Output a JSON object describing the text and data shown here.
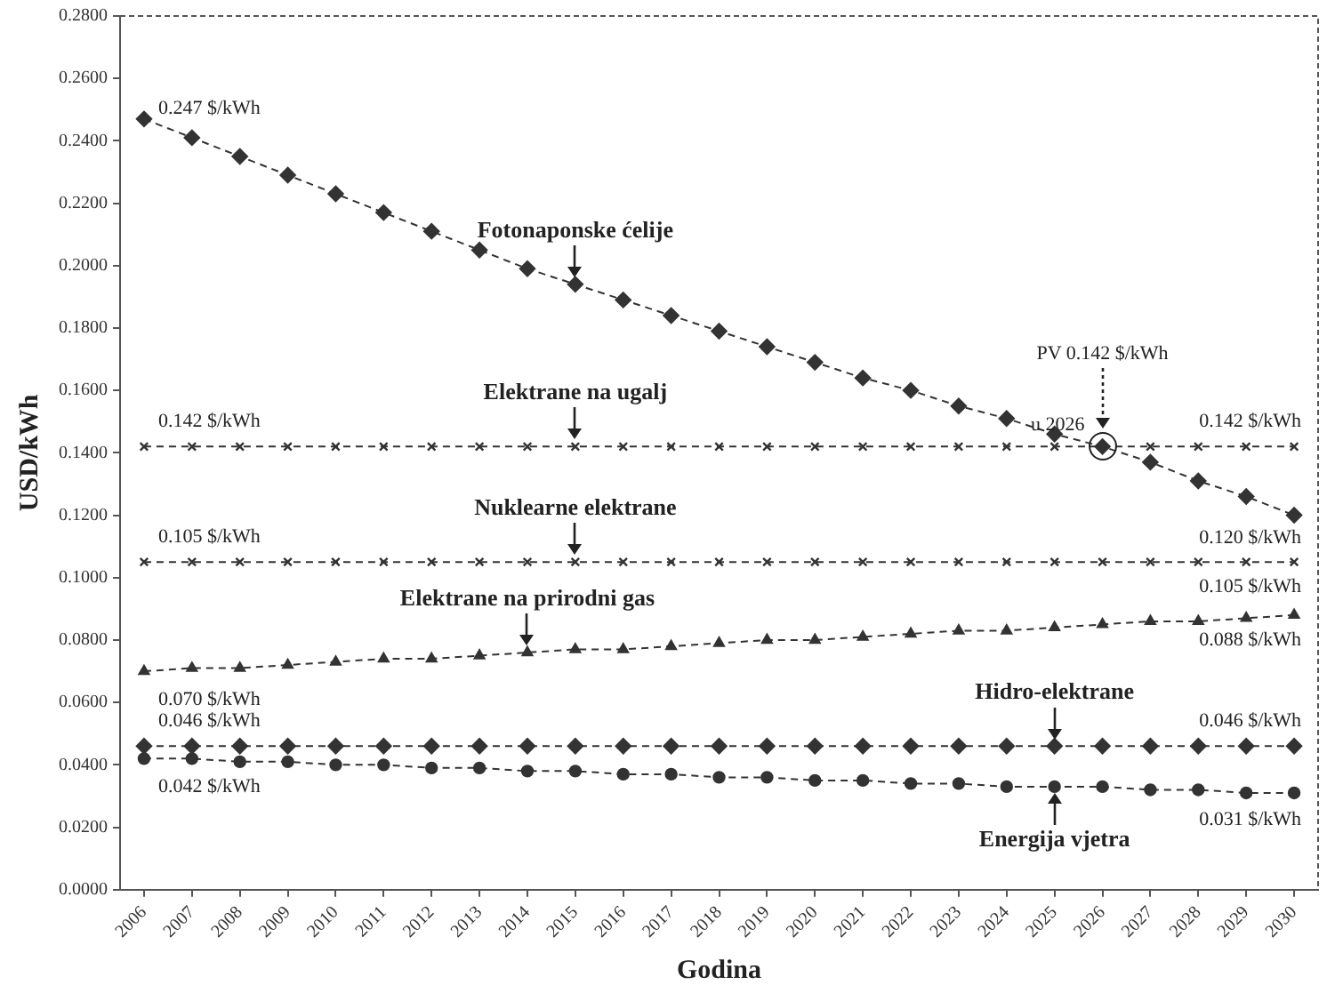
{
  "chart_data": {
    "type": "line",
    "xlabel": "Godina",
    "ylabel": "USD/kWh",
    "categories": [
      "2006",
      "2007",
      "2008",
      "2009",
      "2010",
      "2011",
      "2012",
      "2013",
      "2014",
      "2015",
      "2016",
      "2017",
      "2018",
      "2019",
      "2020",
      "2021",
      "2022",
      "2023",
      "2024",
      "2025",
      "2026",
      "2027",
      "2028",
      "2029",
      "2030"
    ],
    "series": [
      {
        "name": "Fotonaponske ćelije",
        "color": "#333333",
        "marker": "diamond",
        "values": [
          0.247,
          0.241,
          0.235,
          0.229,
          0.223,
          0.217,
          0.211,
          0.205,
          0.199,
          0.194,
          0.189,
          0.184,
          0.179,
          0.174,
          0.169,
          0.164,
          0.16,
          0.155,
          0.151,
          0.146,
          0.142,
          0.137,
          0.131,
          0.126,
          0.12
        ]
      },
      {
        "name": "Elektrane na ugalj",
        "color": "#333333",
        "marker": "cross",
        "values": [
          0.142,
          0.142,
          0.142,
          0.142,
          0.142,
          0.142,
          0.142,
          0.142,
          0.142,
          0.142,
          0.142,
          0.142,
          0.142,
          0.142,
          0.142,
          0.142,
          0.142,
          0.142,
          0.142,
          0.142,
          0.142,
          0.142,
          0.142,
          0.142,
          0.142
        ]
      },
      {
        "name": "Nuklearne elektrane",
        "color": "#333333",
        "marker": "cross",
        "values": [
          0.105,
          0.105,
          0.105,
          0.105,
          0.105,
          0.105,
          0.105,
          0.105,
          0.105,
          0.105,
          0.105,
          0.105,
          0.105,
          0.105,
          0.105,
          0.105,
          0.105,
          0.105,
          0.105,
          0.105,
          0.105,
          0.105,
          0.105,
          0.105,
          0.105
        ]
      },
      {
        "name": "Elektrane na prirodni gas",
        "color": "#333333",
        "marker": "triangle",
        "values": [
          0.07,
          0.071,
          0.071,
          0.072,
          0.073,
          0.074,
          0.074,
          0.075,
          0.076,
          0.077,
          0.077,
          0.078,
          0.079,
          0.08,
          0.08,
          0.081,
          0.082,
          0.083,
          0.083,
          0.084,
          0.085,
          0.086,
          0.086,
          0.087,
          0.088
        ]
      },
      {
        "name": "Hidro-elektrane",
        "color": "#333333",
        "marker": "diamond",
        "values": [
          0.046,
          0.046,
          0.046,
          0.046,
          0.046,
          0.046,
          0.046,
          0.046,
          0.046,
          0.046,
          0.046,
          0.046,
          0.046,
          0.046,
          0.046,
          0.046,
          0.046,
          0.046,
          0.046,
          0.046,
          0.046,
          0.046,
          0.046,
          0.046,
          0.046
        ]
      },
      {
        "name": "Energija vjetra",
        "color": "#333333",
        "marker": "circle",
        "values": [
          0.042,
          0.042,
          0.041,
          0.041,
          0.04,
          0.04,
          0.039,
          0.039,
          0.038,
          0.038,
          0.037,
          0.037,
          0.036,
          0.036,
          0.035,
          0.035,
          0.034,
          0.034,
          0.033,
          0.033,
          0.033,
          0.032,
          0.032,
          0.031,
          0.031
        ]
      }
    ],
    "ylim": [
      0,
      0.28
    ],
    "yticks": [
      {
        "value": 0,
        "label": "0.0000"
      },
      {
        "value": 0.02,
        "label": "0.0200"
      },
      {
        "value": 0.04,
        "label": "0.0400"
      },
      {
        "value": 0.06,
        "label": "0.0600"
      },
      {
        "value": 0.08,
        "label": "0.0800"
      },
      {
        "value": 0.1,
        "label": "0.1000"
      },
      {
        "value": 0.12,
        "label": "0.1200"
      },
      {
        "value": 0.14,
        "label": "0.1400"
      },
      {
        "value": 0.16,
        "label": "0.1600"
      },
      {
        "value": 0.18,
        "label": "0.1800"
      },
      {
        "value": 0.2,
        "label": "0.2000"
      },
      {
        "value": 0.22,
        "label": "0.2200"
      },
      {
        "value": 0.24,
        "label": "0.2400"
      },
      {
        "value": 0.26,
        "label": "0.2600"
      },
      {
        "value": 0.28,
        "label": "0.2800"
      }
    ],
    "grid": false,
    "legend": false,
    "line_style": "dashed",
    "annotations": [
      {
        "text": "0.247 $/kWh",
        "x": "2006",
        "y": 0.247
      },
      {
        "text": "0.142 $/kWh",
        "x": "2006",
        "y": 0.142
      },
      {
        "text": "0.105 $/kWh",
        "x": "2006",
        "y": 0.105
      },
      {
        "text": "0.070 $/kWh",
        "x": "2006",
        "y": 0.07
      },
      {
        "text": "0.046 $/kWh",
        "x": "2006",
        "y": 0.046
      },
      {
        "text": "0.042 $/kWh",
        "x": "2006",
        "y": 0.042
      },
      {
        "text": "0.142 $/kWh",
        "x": "2030",
        "y": 0.142
      },
      {
        "text": "0.120 $/kWh",
        "x": "2030",
        "y": 0.12
      },
      {
        "text": "0.105 $/kWh",
        "x": "2030",
        "y": 0.105
      },
      {
        "text": "0.088 $/kWh",
        "x": "2030",
        "y": 0.088
      },
      {
        "text": "0.046 $/kWh",
        "x": "2030",
        "y": 0.046
      },
      {
        "text": "0.031 $/kWh",
        "x": "2030",
        "y": 0.031
      },
      "PV 0.142 $/kWh",
      {
        "text": "u 2026",
        "x": "2026",
        "y": 0.142
      }
    ]
  }
}
